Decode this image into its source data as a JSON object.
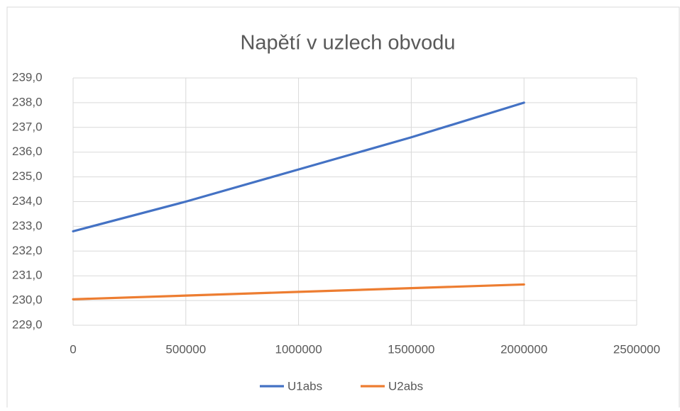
{
  "chart_data": {
    "type": "line",
    "title": "Napětí v uzlech obvodu",
    "x": [
      0,
      500000,
      1000000,
      1500000,
      2000000
    ],
    "series": [
      {
        "name": "U1abs",
        "color": "#4472c4",
        "values": [
          232.8,
          234.0,
          235.3,
          236.6,
          238.0
        ]
      },
      {
        "name": "U2abs",
        "color": "#ed7d31",
        "values": [
          230.05,
          230.2,
          230.35,
          230.5,
          230.65
        ]
      }
    ],
    "xlim": [
      0,
      2500000
    ],
    "xticks": [
      0,
      500000,
      1000000,
      1500000,
      2000000,
      2500000
    ],
    "ylim": [
      229,
      239
    ],
    "yticks": [
      {
        "value": 229,
        "label": "229,0"
      },
      {
        "value": 230,
        "label": "230,0"
      },
      {
        "value": 231,
        "label": "231,0"
      },
      {
        "value": 232,
        "label": "232,0"
      },
      {
        "value": 233,
        "label": "233,0"
      },
      {
        "value": 234,
        "label": "234,0"
      },
      {
        "value": 235,
        "label": "235,0"
      },
      {
        "value": 236,
        "label": "236,0"
      },
      {
        "value": 237,
        "label": "237,0"
      },
      {
        "value": 238,
        "label": "238,0"
      },
      {
        "value": 239,
        "label": "239,0"
      }
    ],
    "grid": true,
    "legend": "bottom"
  }
}
